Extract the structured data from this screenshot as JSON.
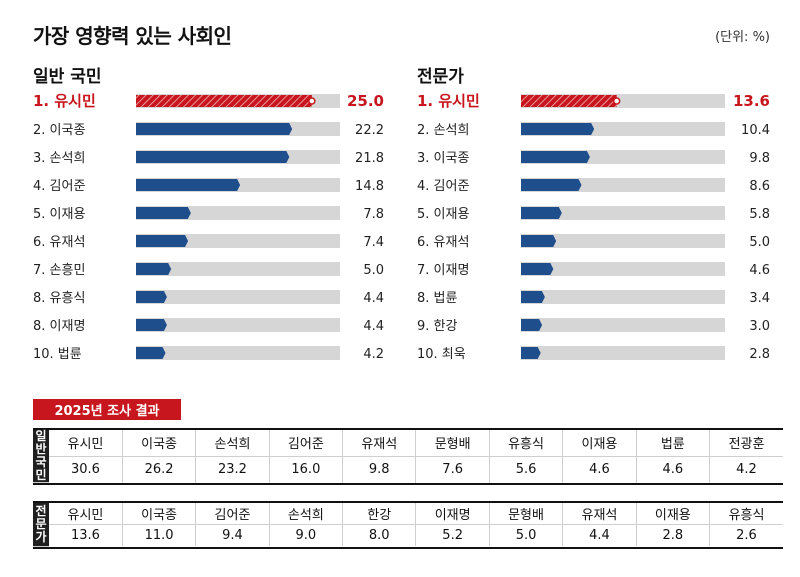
{
  "title": "가장 영향력 있는 사회인",
  "unit": "(단위: %)",
  "chart_data": [
    {
      "type": "bar",
      "title": "일반 국민",
      "xlim": [
        0,
        29
      ],
      "categories": [
        "1. 유시민",
        "2. 이국종",
        "3. 손석희",
        "4. 김어준",
        "5. 이재용",
        "6. 유재석",
        "7. 손흥민",
        "8. 유흥식",
        "8. 이재명",
        "10. 법륜"
      ],
      "values": [
        25.0,
        22.2,
        21.8,
        14.8,
        7.8,
        7.4,
        5.0,
        4.4,
        4.4,
        4.2
      ],
      "labels": [
        "25.0",
        "22.2",
        "21.8",
        "14.8",
        "7.8",
        "7.4",
        "5.0",
        "4.4",
        "4.4",
        "4.2"
      ]
    },
    {
      "type": "bar",
      "title": "전문가",
      "xlim": [
        0,
        29
      ],
      "categories": [
        "1. 유시민",
        "2. 손석희",
        "3. 이국종",
        "4. 김어준",
        "5. 이재용",
        "6. 유재석",
        "7. 이재명",
        "8. 법륜",
        "9. 한강",
        "10. 최욱"
      ],
      "values": [
        13.6,
        10.4,
        9.8,
        8.6,
        5.8,
        5.0,
        4.6,
        3.4,
        3.0,
        2.8
      ],
      "labels": [
        "13.6",
        "10.4",
        "9.8",
        "8.6",
        "5.8",
        "5.0",
        "4.6",
        "3.4",
        "3.0",
        "2.8"
      ]
    },
    {
      "type": "table",
      "title": "2025년 조사 결과",
      "rows": [
        {
          "label": "일반국민",
          "names": [
            "유시민",
            "이국종",
            "손석희",
            "김어준",
            "유재석",
            "문형배",
            "유흥식",
            "이재용",
            "법륜",
            "전광훈"
          ],
          "values": [
            "30.6",
            "26.2",
            "23.2",
            "16.0",
            "9.8",
            "7.6",
            "5.6",
            "4.6",
            "4.6",
            "4.2"
          ]
        },
        {
          "label": "전문가",
          "names": [
            "유시민",
            "이국종",
            "김어준",
            "손석희",
            "한강",
            "이재명",
            "문형배",
            "유재석",
            "이재용",
            "유흥식"
          ],
          "values": [
            "13.6",
            "11.0",
            "9.4",
            "9.0",
            "8.0",
            "5.2",
            "5.0",
            "4.4",
            "2.8",
            "2.6"
          ]
        }
      ]
    }
  ],
  "colors": {
    "highlight": "#c8161e",
    "bar": "#1f4e8c",
    "track": "#d6d6d6"
  }
}
